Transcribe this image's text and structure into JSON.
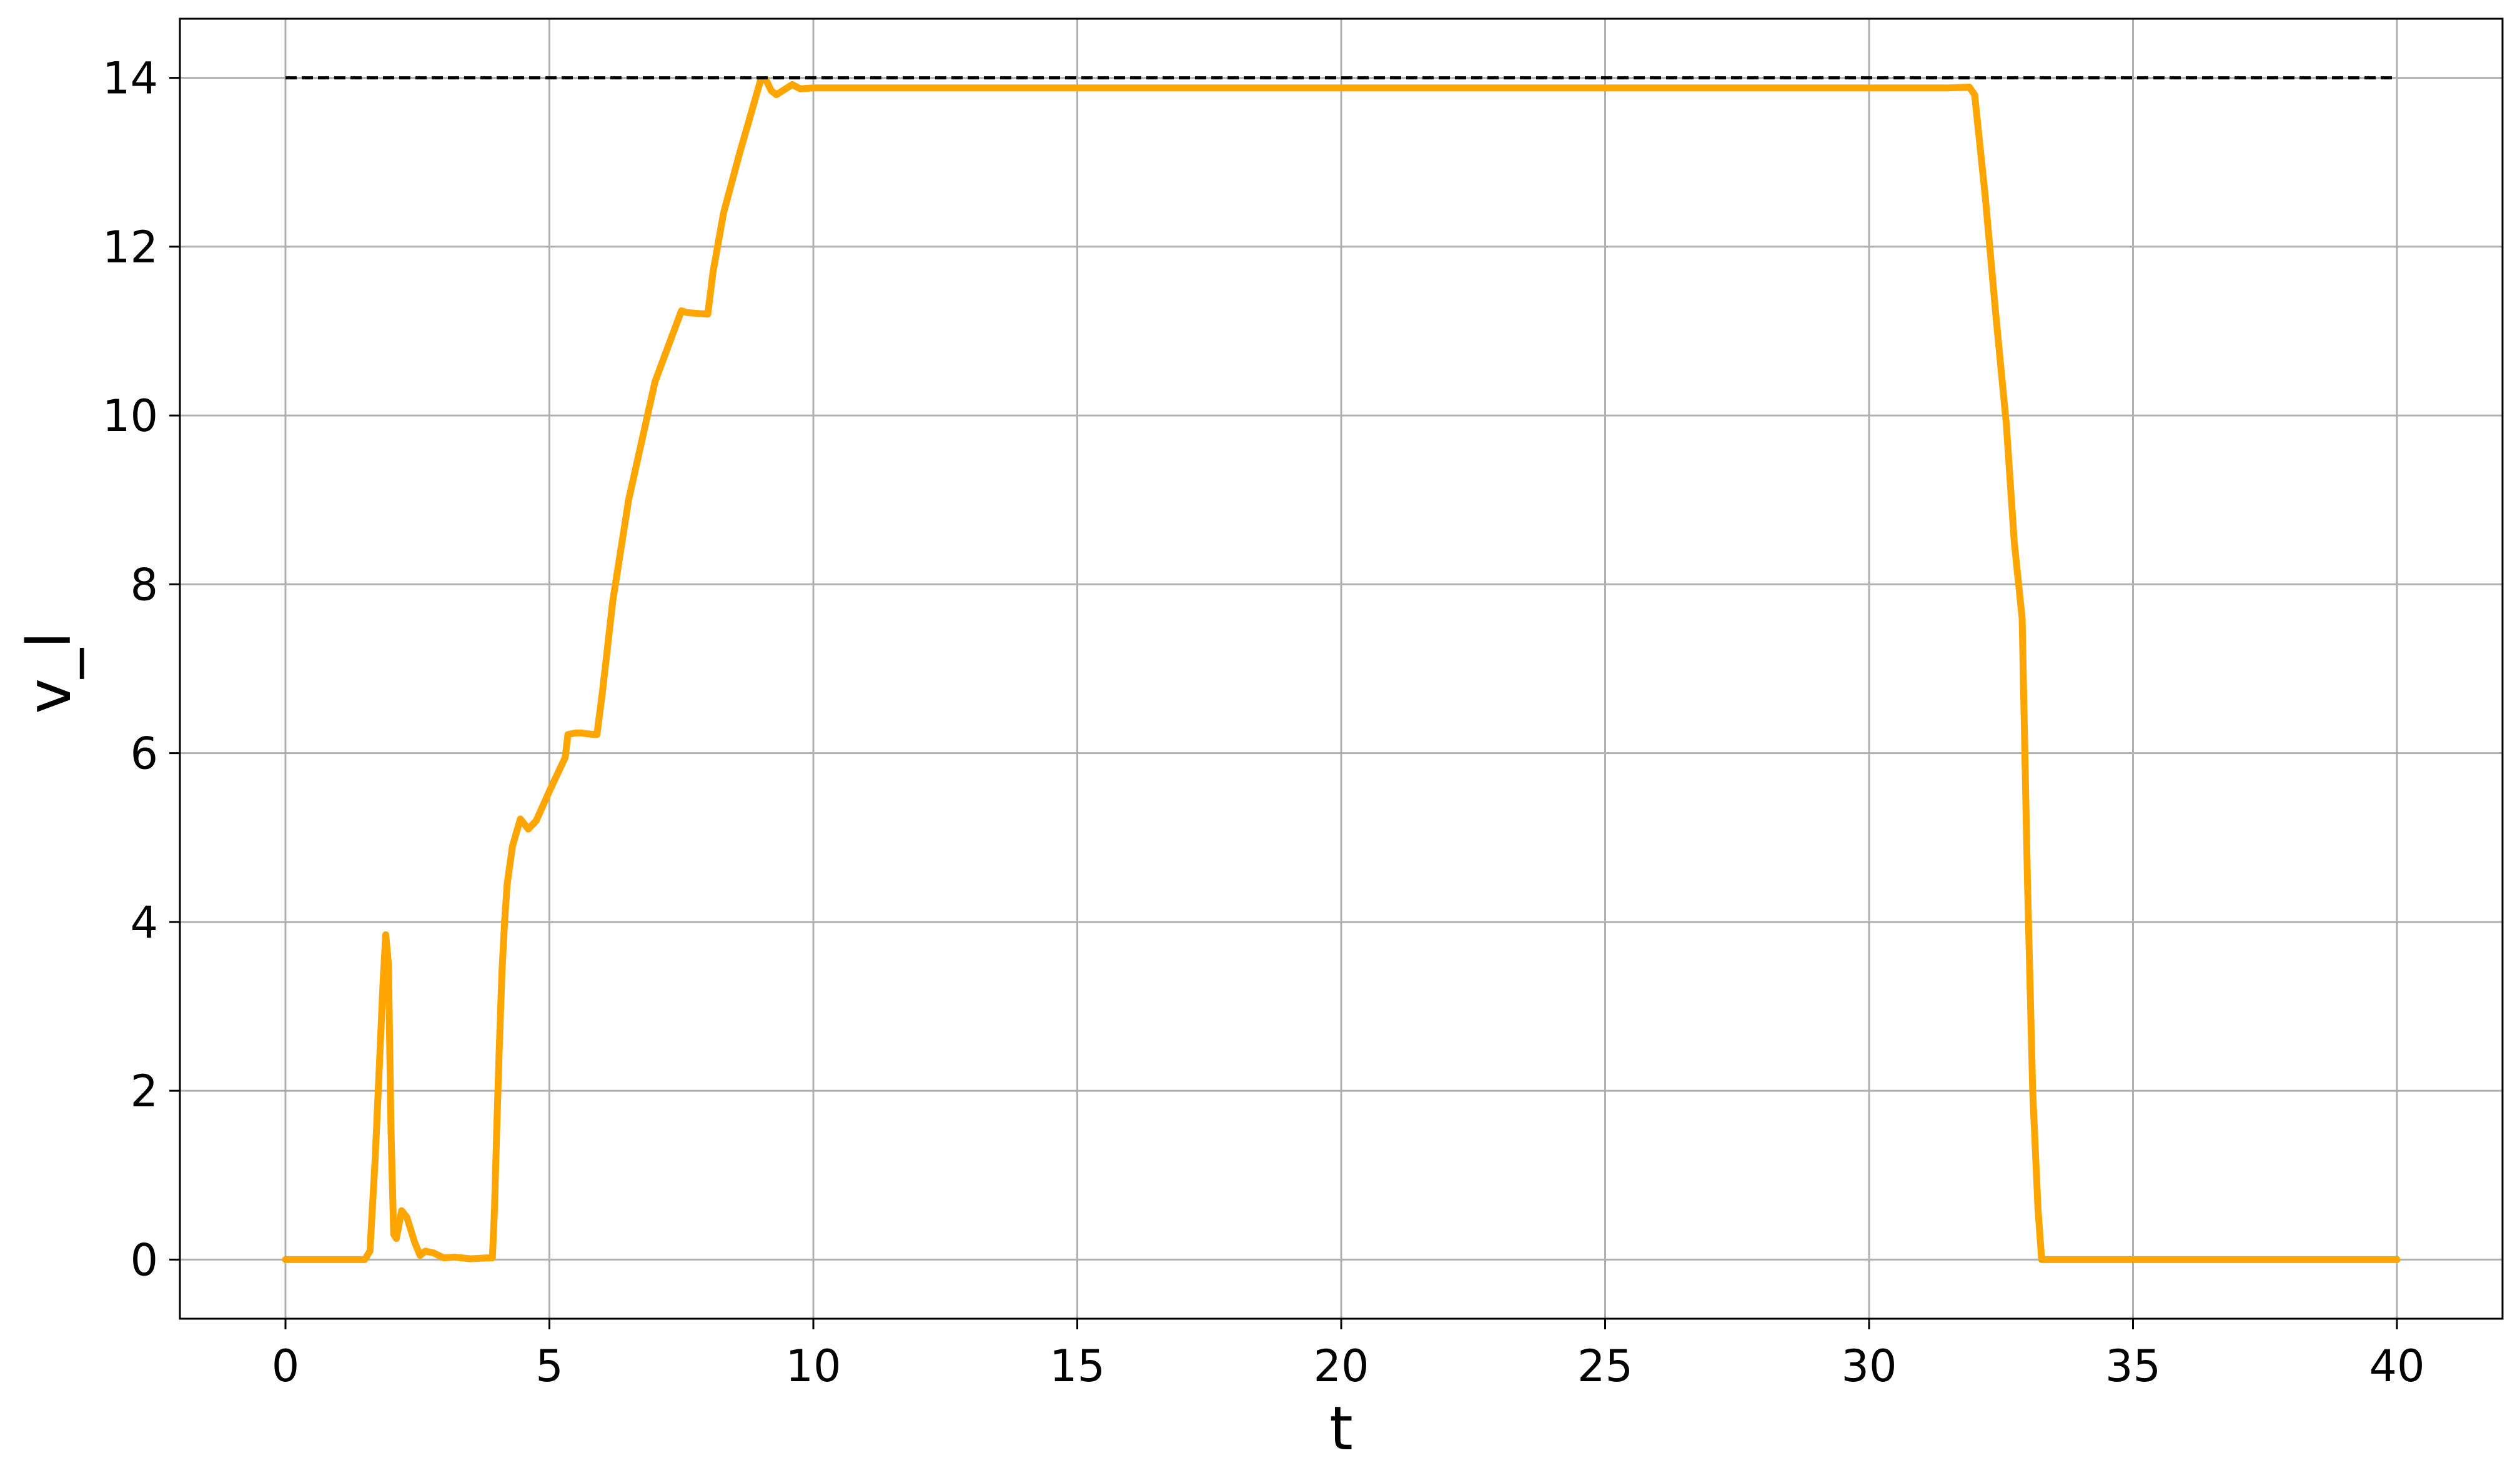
{
  "colors": {
    "series": "#ffa500",
    "reference": "#000000",
    "grid": "#b0b0b0",
    "axes": "#000000",
    "background": "#ffffff"
  },
  "chart_data": {
    "type": "line",
    "title": "",
    "xlabel": "t",
    "ylabel": "v_l",
    "xlim": [
      -2,
      42
    ],
    "ylim": [
      -0.7,
      14.7
    ],
    "xticks": [
      0,
      5,
      10,
      15,
      20,
      25,
      30,
      35,
      40
    ],
    "xtick_labels": [
      "0",
      "5",
      "10",
      "15",
      "20",
      "25",
      "30",
      "35",
      "40"
    ],
    "yticks": [
      0,
      2,
      4,
      6,
      8,
      10,
      12,
      14
    ],
    "ytick_labels": [
      "0",
      "2",
      "4",
      "6",
      "8",
      "10",
      "12",
      "14"
    ],
    "grid": true,
    "legend": false,
    "series": [
      {
        "style": "solid",
        "color": "#ffa500",
        "x": [
          0,
          1.5,
          1.6,
          1.7,
          1.8,
          1.85,
          1.9,
          1.95,
          2.0,
          2.05,
          2.1,
          2.2,
          2.3,
          2.45,
          2.55,
          2.65,
          2.8,
          3.0,
          3.2,
          3.5,
          3.8,
          3.92,
          3.96,
          4.0,
          4.05,
          4.1,
          4.15,
          4.2,
          4.3,
          4.45,
          4.6,
          4.75,
          5.0,
          5.3,
          5.35,
          5.5,
          5.6,
          5.7,
          5.85,
          5.9,
          6.0,
          6.2,
          6.5,
          7.0,
          7.5,
          7.6,
          8.0,
          8.1,
          8.3,
          8.6,
          9.0,
          9.1,
          9.2,
          9.3,
          9.5,
          9.6,
          9.75,
          10.0,
          12.0,
          16.0,
          20.0,
          24.0,
          28.0,
          30.0,
          31.5,
          31.9,
          32.0,
          32.2,
          32.4,
          32.6,
          32.75,
          32.9,
          33.0,
          33.1,
          33.2,
          33.27,
          33.5,
          35.0,
          38.0,
          40.0
        ],
        "y": [
          0,
          0,
          0.1,
          1.2,
          2.6,
          3.3,
          3.85,
          3.5,
          1.5,
          0.3,
          0.25,
          0.58,
          0.5,
          0.2,
          0.05,
          0.1,
          0.08,
          0.02,
          0.03,
          0.01,
          0.02,
          0.02,
          0.6,
          1.5,
          2.5,
          3.4,
          4.0,
          4.45,
          4.9,
          5.22,
          5.1,
          5.2,
          5.55,
          5.95,
          6.22,
          6.24,
          6.24,
          6.23,
          6.22,
          6.22,
          6.7,
          7.8,
          9.0,
          10.4,
          11.24,
          11.22,
          11.2,
          11.7,
          12.4,
          13.1,
          13.97,
          13.98,
          13.85,
          13.8,
          13.88,
          13.92,
          13.87,
          13.88,
          13.88,
          13.88,
          13.88,
          13.88,
          13.88,
          13.88,
          13.88,
          13.89,
          13.8,
          12.6,
          11.2,
          9.9,
          8.5,
          7.6,
          4.5,
          2.0,
          0.6,
          0.0,
          0.0,
          0.0,
          0.0,
          0.0
        ]
      },
      {
        "style": "dashed",
        "color": "#000000",
        "x": [
          0,
          40
        ],
        "y": [
          14,
          14
        ]
      }
    ]
  }
}
